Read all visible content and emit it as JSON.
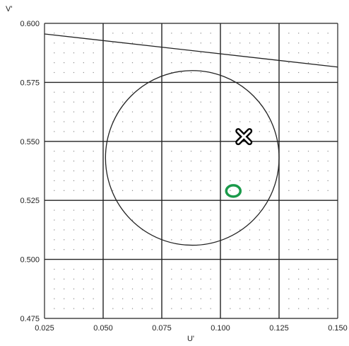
{
  "chart_data": {
    "type": "scatter",
    "title": "",
    "xlabel": "U'",
    "ylabel": "V'",
    "xlim": [
      0.025,
      0.15
    ],
    "ylim": [
      0.475,
      0.6
    ],
    "x_ticks": [
      "0.025",
      "0.050",
      "0.075",
      "0.100",
      "0.125",
      "0.150"
    ],
    "y_ticks": [
      "0.600",
      "0.575",
      "0.550",
      "0.525",
      "0.500",
      "0.475"
    ],
    "grid": true,
    "minor_dot_grid": true,
    "line": {
      "x": [
        0.025,
        0.15
      ],
      "y": [
        0.5955,
        0.5815
      ],
      "color": "#222222"
    },
    "circle": {
      "cx": 0.088,
      "cy": 0.543,
      "r": 0.037,
      "color": "#222222"
    },
    "markers": [
      {
        "shape": "cross",
        "x": 0.11,
        "y": 0.552,
        "color": "#000000"
      },
      {
        "shape": "ring",
        "x": 0.1055,
        "y": 0.529,
        "color": "#1a9a4a"
      }
    ]
  }
}
